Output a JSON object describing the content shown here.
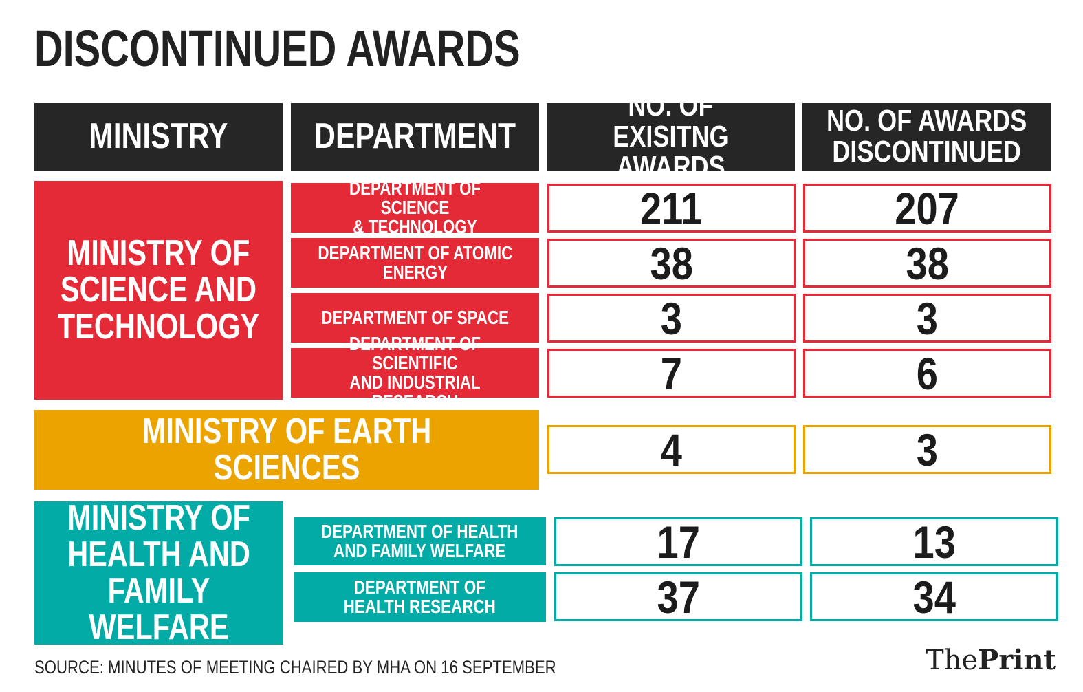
{
  "title": "DISCONTINUED AWARDS",
  "headers": {
    "ministry": "MINISTRY",
    "department": "DEPARTMENT",
    "existing_line1": "NO. OF EXISITNG",
    "existing_line2": "AWARDS",
    "discontinued_line1": "NO. OF AWARDS",
    "discontinued_line2": "DISCONTINUED"
  },
  "colors": {
    "header": "#262626",
    "science": "#e52a37",
    "earth": "#eba300",
    "health": "#02aba6"
  },
  "groups": {
    "science": {
      "ministry_lines": [
        "MINISTRY OF",
        "SCIENCE AND",
        "TECHNOLOGY"
      ],
      "rows": [
        {
          "dept_lines": [
            "DEPARTMENT OF SCIENCE",
            "& TECHNOLOGY"
          ],
          "existing": "211",
          "discontinued": "207"
        },
        {
          "dept_lines": [
            "DEPARTMENT OF ATOMIC",
            "ENERGY"
          ],
          "existing": "38",
          "discontinued": "38"
        },
        {
          "dept_lines": [
            "DEPARTMENT OF SPACE"
          ],
          "existing": "3",
          "discontinued": "3"
        },
        {
          "dept_lines": [
            "DEPARTMENT OF SCIENTIFIC",
            "AND INDUSTRIAL RESEARCH"
          ],
          "existing": "7",
          "discontinued": "6"
        }
      ]
    },
    "earth": {
      "ministry": "MINISTRY OF EARTH SCIENCES",
      "existing": "4",
      "discontinued": "3"
    },
    "health": {
      "ministry_lines": [
        "MINISTRY OF",
        "HEALTH AND",
        "FAMILY WELFARE"
      ],
      "rows": [
        {
          "dept_lines": [
            "DEPARTMENT OF HEALTH",
            "AND FAMILY WELFARE"
          ],
          "existing": "17",
          "discontinued": "13"
        },
        {
          "dept_lines": [
            "DEPARTMENT OF",
            "HEALTH RESEARCH"
          ],
          "existing": "37",
          "discontinued": "34"
        }
      ]
    }
  },
  "source": "SOURCE: MINUTES OF MEETING CHAIRED BY MHA ON 16 SEPTEMBER",
  "logo": {
    "part1": "The",
    "part2": "Print"
  },
  "chart_data": {
    "type": "table",
    "title": "DISCONTINUED AWARDS",
    "columns": [
      "MINISTRY",
      "DEPARTMENT",
      "NO. OF EXISITNG AWARDS",
      "NO. OF AWARDS DISCONTINUED"
    ],
    "rows": [
      [
        "MINISTRY OF SCIENCE AND TECHNOLOGY",
        "DEPARTMENT OF SCIENCE & TECHNOLOGY",
        211,
        207
      ],
      [
        "MINISTRY OF SCIENCE AND TECHNOLOGY",
        "DEPARTMENT OF ATOMIC ENERGY",
        38,
        38
      ],
      [
        "MINISTRY OF SCIENCE AND TECHNOLOGY",
        "DEPARTMENT OF SPACE",
        3,
        3
      ],
      [
        "MINISTRY OF SCIENCE AND TECHNOLOGY",
        "DEPARTMENT OF SCIENTIFIC AND INDUSTRIAL RESEARCH",
        7,
        6
      ],
      [
        "MINISTRY OF EARTH SCIENCES",
        "",
        4,
        3
      ],
      [
        "MINISTRY OF HEALTH AND FAMILY WELFARE",
        "DEPARTMENT OF HEALTH AND FAMILY WELFARE",
        17,
        13
      ],
      [
        "MINISTRY OF HEALTH AND FAMILY WELFARE",
        "DEPARTMENT OF HEALTH RESEARCH",
        37,
        34
      ]
    ],
    "source": "SOURCE: MINUTES OF MEETING CHAIRED BY MHA ON 16 SEPTEMBER"
  }
}
